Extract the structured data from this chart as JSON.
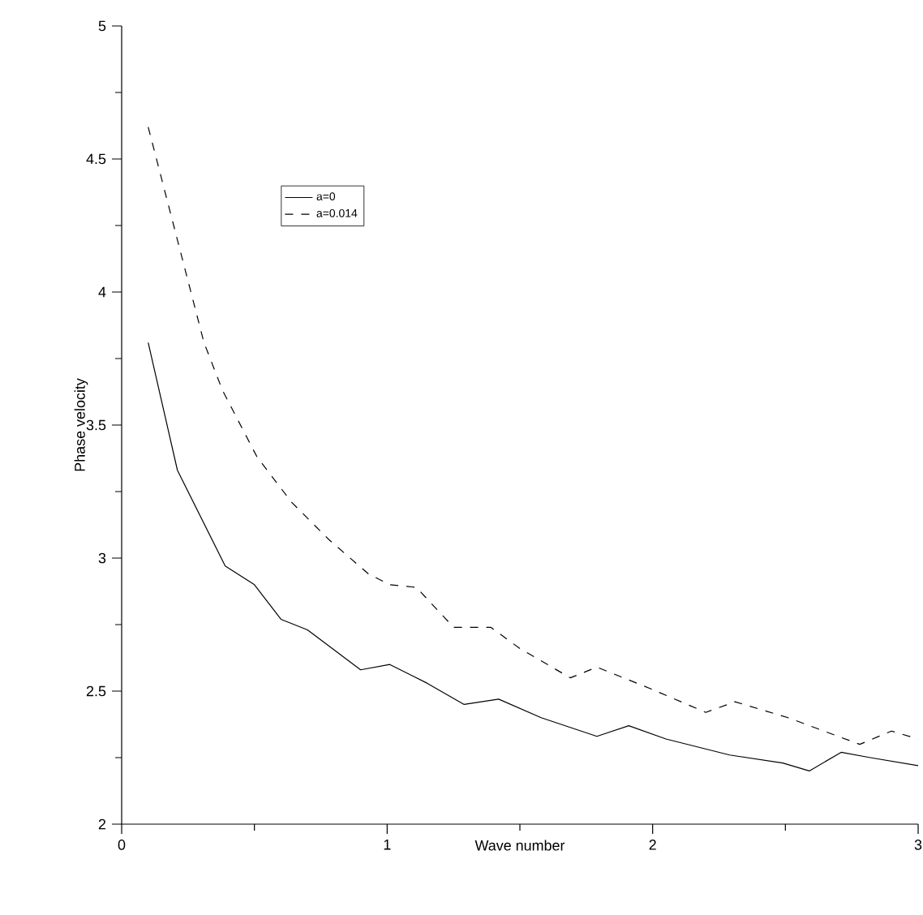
{
  "chart_data": {
    "type": "line",
    "xlabel": "Wave number",
    "ylabel": "Phase velocity",
    "xlim": [
      0,
      3
    ],
    "ylim": [
      2,
      5
    ],
    "xticks": [
      0,
      1,
      2,
      3
    ],
    "yticks": [
      2,
      2.5,
      3,
      3.5,
      4,
      4.5,
      5
    ],
    "legend": "top left",
    "grid": false,
    "marker": "none",
    "series": [
      {
        "name": "a=0",
        "color": "#000000",
        "line_style": "solid",
        "x": [
          0.1,
          0.21,
          0.39,
          0.5,
          0.6,
          0.7,
          0.9,
          1.01,
          1.15,
          1.29,
          1.42,
          1.58,
          1.79,
          1.91,
          2.05,
          2.29,
          2.49,
          2.59,
          2.71,
          2.82,
          3.0
        ],
        "values": [
          3.81,
          3.33,
          2.97,
          2.9,
          2.77,
          2.73,
          2.58,
          2.6,
          2.53,
          2.45,
          2.47,
          2.4,
          2.33,
          2.37,
          2.32,
          2.26,
          2.23,
          2.2,
          2.27,
          2.25,
          2.22
        ]
      },
      {
        "name": "a=0.014",
        "color": "#000000",
        "line_style": "dashed",
        "x": [
          0.1,
          0.31,
          0.38,
          0.51,
          0.64,
          0.78,
          0.93,
          1.01,
          1.11,
          1.25,
          1.39,
          1.5,
          1.69,
          1.79,
          1.99,
          2.2,
          2.31,
          2.51,
          2.78,
          2.9,
          3.0
        ],
        "values": [
          4.62,
          3.81,
          3.63,
          3.38,
          3.21,
          3.07,
          2.94,
          2.9,
          2.89,
          2.74,
          2.74,
          2.66,
          2.55,
          2.59,
          2.51,
          2.42,
          2.46,
          2.4,
          2.3,
          2.35,
          2.32
        ]
      }
    ]
  }
}
